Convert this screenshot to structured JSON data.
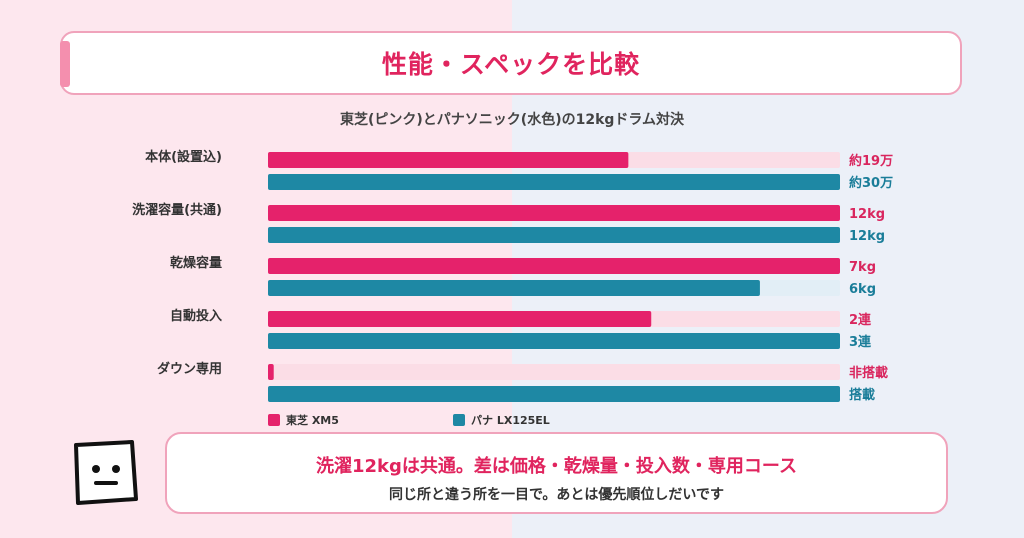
{
  "title": "性能・スペックを比較",
  "subtitle": "東芝(ピンク)とパナソニック(水色)の12kgドラム対決",
  "colors": {
    "toshiba": "#e5226b",
    "toshiba_track": "#fbdde6",
    "pana": "#1e88a4",
    "pana_track": "#e2eef6",
    "label_toshiba": "#d9265e",
    "label_pana": "#1a7d99"
  },
  "chart_data": {
    "type": "bar",
    "orientation": "horizontal",
    "categories": [
      "本体(設置込)",
      "洗濯容量(共通)",
      "乾燥容量",
      "自動投入",
      "ダウン専用"
    ],
    "series": [
      {
        "name": "東芝 XM5",
        "values": [
          0.63,
          1.0,
          1.0,
          0.67,
          0.01
        ],
        "labels": [
          "約19万",
          "12kg",
          "7kg",
          "2連",
          "非搭載"
        ]
      },
      {
        "name": "パナ LX125EL",
        "values": [
          1.0,
          1.0,
          0.86,
          1.0,
          1.0
        ],
        "labels": [
          "約30万",
          "12kg",
          "6kg",
          "3連",
          "搭載"
        ]
      }
    ],
    "xlim": [
      0,
      1
    ],
    "grid": false,
    "legend": "bottom"
  },
  "callout": {
    "main": "洗濯12kgは共通。差は価格・乾燥量・投入数・専用コース",
    "sub": "同じ所と違う所を一目で。あとは優先順位しだいです"
  }
}
